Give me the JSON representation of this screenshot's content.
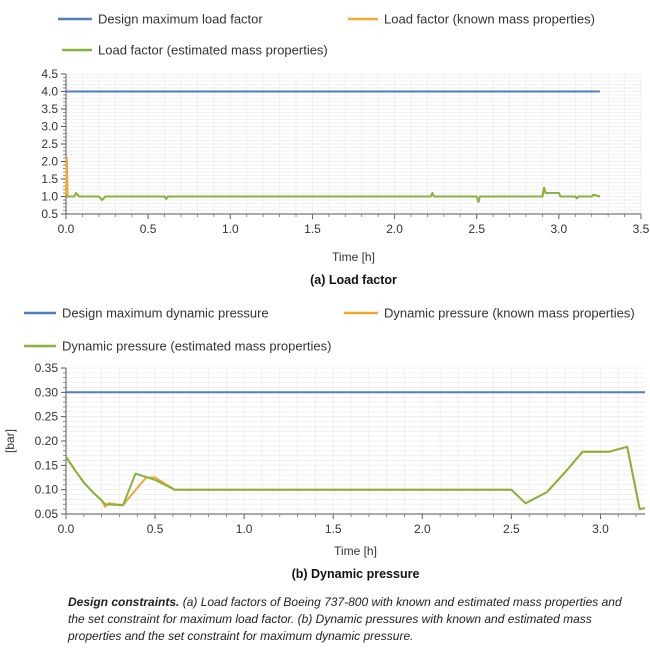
{
  "chart_data": [
    {
      "type": "line",
      "panel_label": "(a)",
      "title": "Load factor",
      "xlabel": "Time [h]",
      "ylabel": "",
      "xlim": [
        0,
        3.5
      ],
      "ylim": [
        0.5,
        4.5
      ],
      "xticks": [
        "0.0",
        "0.5",
        "1.0",
        "1.5",
        "2.0",
        "2.5",
        "3.0",
        "3.5"
      ],
      "yticks": [
        "0.5",
        "1.0",
        "1.5",
        "2.0",
        "2.5",
        "3.0",
        "3.5",
        "4.0",
        "4.5"
      ],
      "grid": true,
      "legend_placement": "top",
      "series": [
        {
          "name": "Design maximum load factor",
          "color": "#4f7dc0",
          "points": [
            [
              0.0,
              4.0
            ],
            [
              3.25,
              4.0
            ]
          ]
        },
        {
          "name": "Load factor (known mass properties)",
          "color": "#f0a830",
          "points": [
            [
              0.0,
              1.0
            ],
            [
              0.005,
              2.1
            ],
            [
              0.01,
              1.0
            ],
            [
              0.05,
              1.0
            ],
            [
              0.06,
              1.1
            ],
            [
              0.08,
              1.0
            ],
            [
              0.2,
              1.0
            ],
            [
              0.22,
              0.9
            ],
            [
              0.24,
              1.0
            ],
            [
              0.6,
              1.0
            ],
            [
              0.61,
              0.93
            ],
            [
              0.62,
              1.0
            ],
            [
              2.22,
              1.0
            ],
            [
              2.23,
              1.1
            ],
            [
              2.24,
              1.0
            ],
            [
              2.5,
              1.0
            ],
            [
              2.51,
              0.85
            ],
            [
              2.52,
              1.0
            ],
            [
              2.9,
              1.0
            ],
            [
              2.91,
              1.25
            ],
            [
              2.92,
              1.1
            ],
            [
              3.0,
              1.1
            ],
            [
              3.01,
              1.0
            ],
            [
              3.1,
              1.0
            ],
            [
              3.11,
              0.95
            ],
            [
              3.12,
              1.0
            ],
            [
              3.2,
              1.0
            ],
            [
              3.21,
              1.05
            ],
            [
              3.25,
              1.0
            ]
          ]
        },
        {
          "name": "Load factor (estimated mass properties)",
          "color": "#86b33f",
          "points": [
            [
              0.0,
              1.0
            ],
            [
              0.05,
              1.0
            ],
            [
              0.06,
              1.1
            ],
            [
              0.08,
              1.0
            ],
            [
              0.2,
              1.0
            ],
            [
              0.22,
              0.9
            ],
            [
              0.24,
              1.0
            ],
            [
              0.6,
              1.0
            ],
            [
              0.61,
              0.93
            ],
            [
              0.62,
              1.0
            ],
            [
              2.22,
              1.0
            ],
            [
              2.23,
              1.1
            ],
            [
              2.24,
              1.0
            ],
            [
              2.5,
              1.0
            ],
            [
              2.51,
              0.85
            ],
            [
              2.52,
              1.0
            ],
            [
              2.9,
              1.0
            ],
            [
              2.91,
              1.25
            ],
            [
              2.92,
              1.1
            ],
            [
              3.0,
              1.1
            ],
            [
              3.01,
              1.0
            ],
            [
              3.1,
              1.0
            ],
            [
              3.11,
              0.95
            ],
            [
              3.12,
              1.0
            ],
            [
              3.2,
              1.0
            ],
            [
              3.21,
              1.05
            ],
            [
              3.25,
              1.0
            ]
          ]
        }
      ]
    },
    {
      "type": "line",
      "panel_label": "(b)",
      "title": "Dynamic pressure",
      "xlabel": "Time [h]",
      "ylabel": "[bar]",
      "xlim": [
        0,
        3.25
      ],
      "ylim": [
        0.05,
        0.35
      ],
      "xticks": [
        "0.0",
        "0.5",
        "1.0",
        "1.5",
        "2.0",
        "2.5",
        "3.0"
      ],
      "yticks": [
        "0.05",
        "0.10",
        "0.15",
        "0.20",
        "0.25",
        "0.30",
        "0.35"
      ],
      "grid": true,
      "legend_placement": "top",
      "series": [
        {
          "name": "Design maximum dynamic pressure",
          "color": "#4f7dc0",
          "points": [
            [
              0.0,
              0.3
            ],
            [
              3.25,
              0.3
            ]
          ]
        },
        {
          "name": "Dynamic pressure (known mass properties)",
          "color": "#f0a830",
          "points": [
            [
              0.0,
              0.168
            ],
            [
              0.05,
              0.14
            ],
            [
              0.1,
              0.115
            ],
            [
              0.15,
              0.095
            ],
            [
              0.2,
              0.078
            ],
            [
              0.22,
              0.065
            ],
            [
              0.24,
              0.072
            ],
            [
              0.32,
              0.068
            ],
            [
              0.38,
              0.095
            ],
            [
              0.45,
              0.125
            ],
            [
              0.5,
              0.125
            ],
            [
              0.61,
              0.1
            ],
            [
              2.5,
              0.1
            ],
            [
              2.58,
              0.072
            ],
            [
              2.7,
              0.095
            ],
            [
              2.8,
              0.135
            ],
            [
              2.9,
              0.178
            ],
            [
              3.05,
              0.178
            ],
            [
              3.15,
              0.188
            ],
            [
              3.22,
              0.06
            ],
            [
              3.25,
              0.062
            ]
          ]
        },
        {
          "name": "Dynamic pressure (estimated mass properties)",
          "color": "#86b33f",
          "points": [
            [
              0.0,
              0.168
            ],
            [
              0.05,
              0.14
            ],
            [
              0.1,
              0.115
            ],
            [
              0.15,
              0.095
            ],
            [
              0.2,
              0.078
            ],
            [
              0.22,
              0.07
            ],
            [
              0.32,
              0.068
            ],
            [
              0.39,
              0.133
            ],
            [
              0.5,
              0.12
            ],
            [
              0.61,
              0.1
            ],
            [
              2.5,
              0.1
            ],
            [
              2.58,
              0.072
            ],
            [
              2.7,
              0.095
            ],
            [
              2.8,
              0.135
            ],
            [
              2.9,
              0.178
            ],
            [
              3.05,
              0.178
            ],
            [
              3.15,
              0.188
            ],
            [
              3.22,
              0.06
            ],
            [
              3.25,
              0.062
            ]
          ]
        }
      ]
    }
  ],
  "caption": {
    "bold": "Design constraints.",
    "text": " (a) Load factors of Boeing 737-800 with known and estimated mass properties and the set constraint for maximum load factor. (b) Dynamic pressures with known and estimated mass properties and the set constraint for maximum dynamic pressure."
  }
}
